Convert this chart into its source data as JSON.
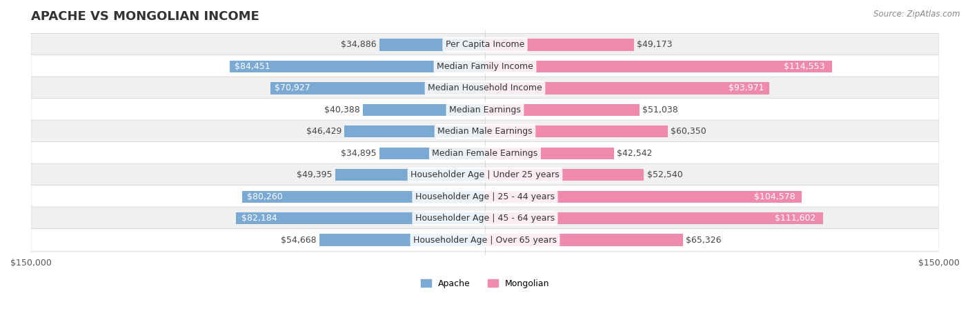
{
  "title": "APACHE VS MONGOLIAN INCOME",
  "source": "Source: ZipAtlas.com",
  "categories": [
    "Per Capita Income",
    "Median Family Income",
    "Median Household Income",
    "Median Earnings",
    "Median Male Earnings",
    "Median Female Earnings",
    "Householder Age | Under 25 years",
    "Householder Age | 25 - 44 years",
    "Householder Age | 45 - 64 years",
    "Householder Age | Over 65 years"
  ],
  "apache_values": [
    34886,
    84451,
    70927,
    40388,
    46429,
    34895,
    49395,
    80260,
    82184,
    54668
  ],
  "mongolian_values": [
    49173,
    114553,
    93971,
    51038,
    60350,
    42542,
    52540,
    104578,
    111602,
    65326
  ],
  "apache_labels": [
    "$34,886",
    "$84,451",
    "$70,927",
    "$40,388",
    "$46,429",
    "$34,895",
    "$49,395",
    "$80,260",
    "$82,184",
    "$54,668"
  ],
  "mongolian_labels": [
    "$49,173",
    "$114,553",
    "$93,971",
    "$51,038",
    "$60,350",
    "$42,542",
    "$52,540",
    "$104,578",
    "$111,602",
    "$65,326"
  ],
  "apache_color": "#7aaad4",
  "mongolian_color": "#f08aab",
  "apache_color_dark": "#4a7fb5",
  "mongolian_color_dark": "#e05080",
  "max_value": 150000,
  "label_fontsize": 9,
  "title_fontsize": 13,
  "bar_height": 0.55,
  "row_bg_color": "#f0f0f0",
  "row_bg_color2": "#ffffff",
  "legend_apache": "Apache",
  "legend_mongolian": "Mongolian",
  "background_color": "#ffffff"
}
